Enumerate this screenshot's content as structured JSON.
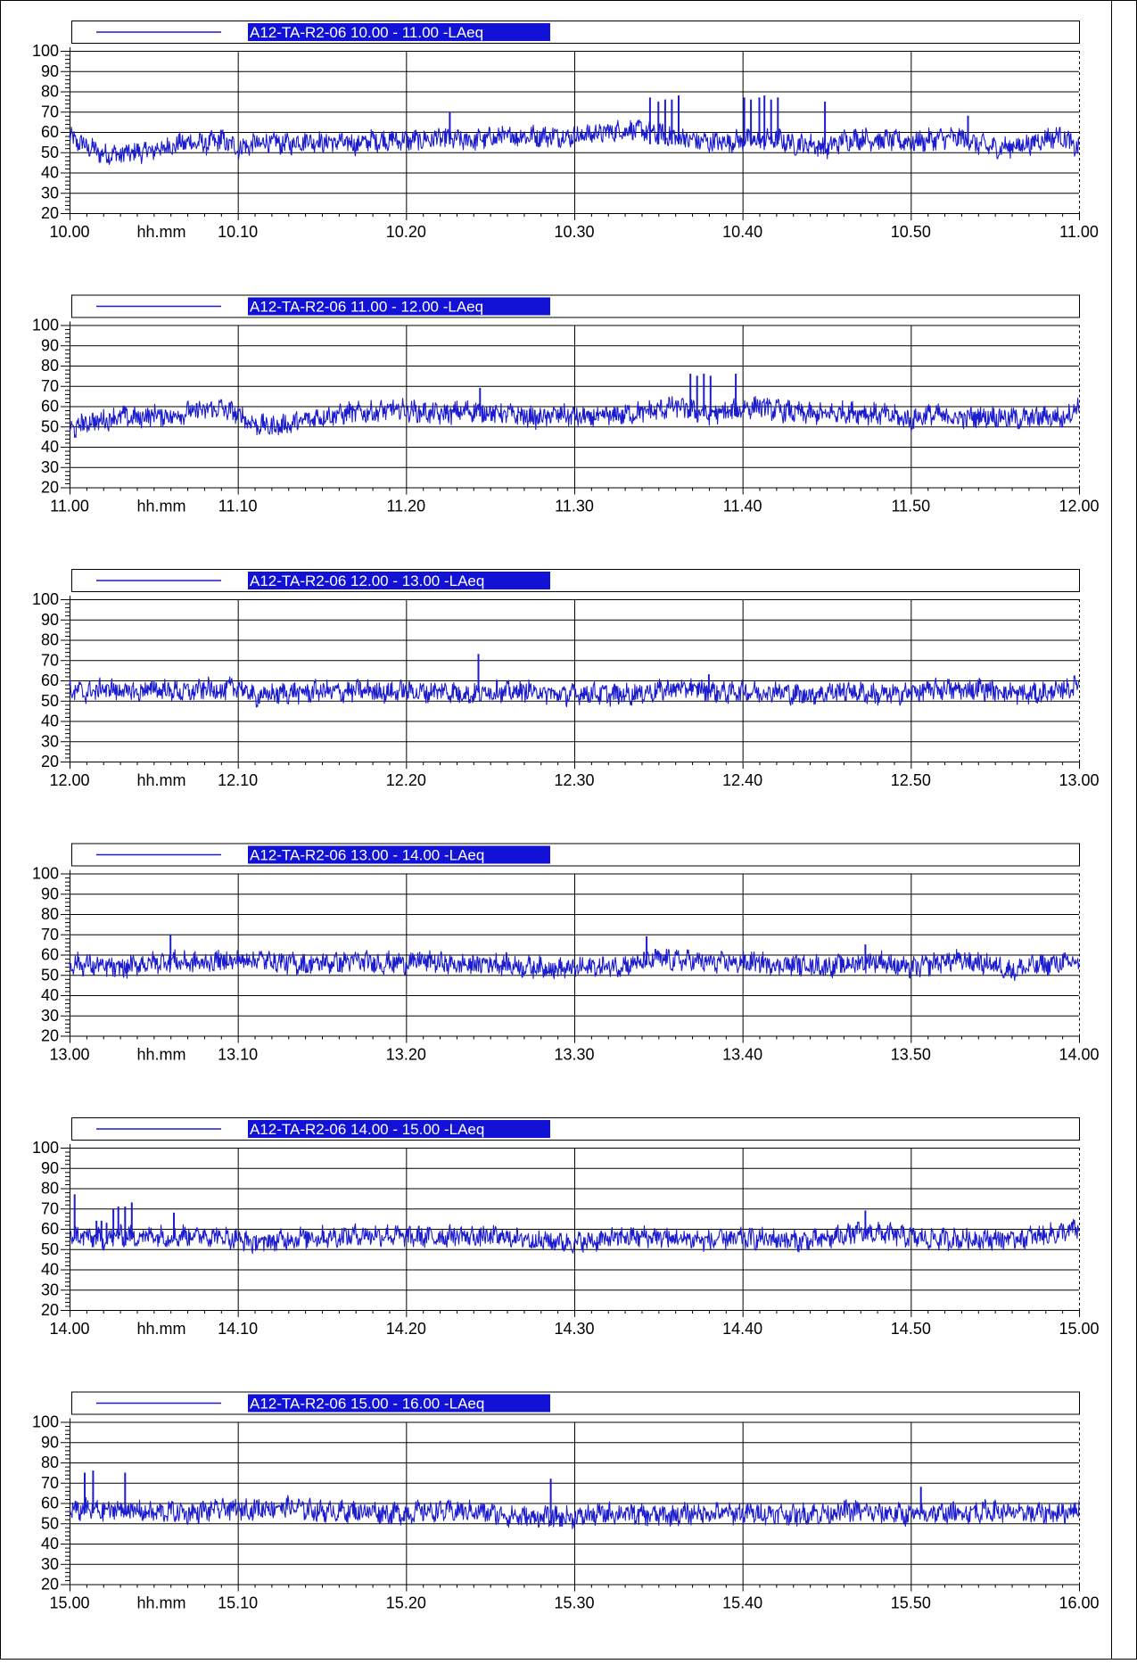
{
  "colors": {
    "series": "#1c1ccf",
    "legend_fill": "#1212d6",
    "legend_text": "#ffffff",
    "axis": "#000000",
    "background": "#ffffff"
  },
  "chart_data": [
    {
      "type": "line",
      "legend": "A12-TA-R2-06 10.00 - 11.00 -LAeq",
      "xlabel": "hh.mm",
      "xticks": [
        "10.00",
        "10.10",
        "10.20",
        "10.30",
        "10.40",
        "10.50",
        "11.00"
      ],
      "yticks": [
        "20",
        "30",
        "40",
        "50",
        "60",
        "70",
        "80",
        "90",
        "100"
      ],
      "ylim": [
        20,
        100
      ],
      "xlim_minutes": [
        0,
        60
      ],
      "grid": true,
      "baseline": 54,
      "series": [
        {
          "x": [
            0,
            1,
            2,
            3,
            4,
            5,
            6,
            7,
            8,
            9,
            10,
            11,
            12,
            13,
            14,
            15,
            16,
            17,
            18,
            19,
            20,
            21,
            22,
            23,
            24,
            25,
            26,
            27,
            28,
            29,
            30,
            31,
            32,
            33,
            34,
            35,
            36,
            37,
            38,
            39,
            40,
            41,
            42,
            43,
            44,
            45,
            46,
            47,
            48,
            49,
            50,
            51,
            52,
            53,
            54,
            55,
            56,
            57,
            58,
            59,
            60
          ],
          "y": [
            57,
            53,
            49,
            49,
            50,
            51,
            53,
            55,
            54,
            56,
            52,
            54,
            55,
            54,
            56,
            55,
            55,
            54,
            56,
            56,
            56,
            56,
            57,
            56,
            56,
            57,
            58,
            58,
            58,
            58,
            58,
            59,
            60,
            61,
            61,
            59,
            58,
            56,
            55,
            55,
            56,
            56,
            57,
            54,
            54,
            52,
            56,
            57,
            56,
            56,
            55,
            56,
            57,
            57,
            54,
            52,
            53,
            54,
            57,
            58,
            51
          ]
        }
      ],
      "spikes": [
        [
          9.0,
          61
        ],
        [
          22.6,
          70
        ],
        [
          34.5,
          77
        ],
        [
          35.0,
          75
        ],
        [
          35.4,
          76
        ],
        [
          35.8,
          76
        ],
        [
          36.2,
          78
        ],
        [
          40.1,
          77
        ],
        [
          40.5,
          76
        ],
        [
          41.0,
          77
        ],
        [
          41.3,
          78
        ],
        [
          41.7,
          76
        ],
        [
          42.1,
          77
        ],
        [
          44.9,
          75
        ],
        [
          53.4,
          68
        ]
      ]
    },
    {
      "type": "line",
      "legend": "A12-TA-R2-06 11.00 - 12.00 -LAeq",
      "xlabel": "hh.mm",
      "xticks": [
        "11.00",
        "11.10",
        "11.20",
        "11.30",
        "11.40",
        "11.50",
        "12.00"
      ],
      "yticks": [
        "20",
        "30",
        "40",
        "50",
        "60",
        "70",
        "80",
        "90",
        "100"
      ],
      "ylim": [
        20,
        100
      ],
      "xlim_minutes": [
        0,
        60
      ],
      "grid": true,
      "baseline": 55,
      "series": [
        {
          "x": [
            0,
            1,
            2,
            3,
            4,
            5,
            6,
            7,
            8,
            9,
            10,
            11,
            12,
            13,
            14,
            15,
            16,
            17,
            18,
            19,
            20,
            21,
            22,
            23,
            24,
            25,
            26,
            27,
            28,
            29,
            30,
            31,
            32,
            33,
            34,
            35,
            36,
            37,
            38,
            39,
            40,
            41,
            42,
            43,
            44,
            45,
            46,
            47,
            48,
            49,
            50,
            51,
            52,
            53,
            54,
            55,
            56,
            57,
            58,
            59,
            60
          ],
          "y": [
            48,
            52,
            53,
            55,
            54,
            56,
            55,
            57,
            58,
            59,
            56,
            51,
            50,
            51,
            53,
            55,
            56,
            57,
            57,
            58,
            58,
            57,
            56,
            57,
            58,
            57,
            56,
            55,
            54,
            56,
            55,
            54,
            55,
            56,
            57,
            58,
            60,
            58,
            56,
            57,
            59,
            60,
            58,
            57,
            56,
            56,
            57,
            57,
            56,
            55,
            53,
            56,
            55,
            54,
            55,
            55,
            54,
            54,
            55,
            54,
            60
          ]
        }
      ],
      "spikes": [
        [
          24.4,
          69
        ],
        [
          36.9,
          76
        ],
        [
          37.3,
          75
        ],
        [
          37.7,
          76
        ],
        [
          38.1,
          75
        ],
        [
          39.6,
          76
        ]
      ]
    },
    {
      "type": "line",
      "legend": "A12-TA-R2-06 12.00 - 13.00 -LAeq",
      "xlabel": "hh.mm",
      "xticks": [
        "12.00",
        "12.10",
        "12.20",
        "12.30",
        "12.40",
        "12.50",
        "13.00"
      ],
      "yticks": [
        "20",
        "30",
        "40",
        "50",
        "60",
        "70",
        "80",
        "90",
        "100"
      ],
      "ylim": [
        20,
        100
      ],
      "xlim_minutes": [
        0,
        60
      ],
      "grid": true,
      "baseline": 54,
      "series": [
        {
          "x": [
            0,
            1,
            2,
            3,
            4,
            5,
            6,
            7,
            8,
            9,
            10,
            11,
            12,
            13,
            14,
            15,
            16,
            17,
            18,
            19,
            20,
            21,
            22,
            23,
            24,
            25,
            26,
            27,
            28,
            29,
            30,
            31,
            32,
            33,
            34,
            35,
            36,
            37,
            38,
            39,
            40,
            41,
            42,
            43,
            44,
            45,
            46,
            47,
            48,
            49,
            50,
            51,
            52,
            53,
            54,
            55,
            56,
            57,
            58,
            59,
            60
          ],
          "y": [
            55,
            54,
            56,
            55,
            54,
            56,
            55,
            54,
            56,
            55,
            57,
            52,
            53,
            54,
            54,
            55,
            54,
            55,
            55,
            54,
            55,
            54,
            55,
            54,
            53,
            55,
            54,
            55,
            54,
            53,
            53,
            54,
            53,
            53,
            54,
            55,
            56,
            56,
            55,
            54,
            55,
            54,
            55,
            53,
            53,
            54,
            55,
            54,
            53,
            53,
            54,
            55,
            56,
            55,
            56,
            55,
            54,
            53,
            54,
            55,
            58
          ]
        }
      ],
      "spikes": [
        [
          24.3,
          73
        ],
        [
          25.4,
          60
        ],
        [
          38.0,
          63
        ]
      ]
    },
    {
      "type": "line",
      "legend": "A12-TA-R2-06 13.00 - 14.00 -LAeq",
      "xlabel": "hh.mm",
      "xticks": [
        "13.00",
        "13.10",
        "13.20",
        "13.30",
        "13.40",
        "13.50",
        "14.00"
      ],
      "yticks": [
        "20",
        "30",
        "40",
        "50",
        "60",
        "70",
        "80",
        "90",
        "100"
      ],
      "ylim": [
        20,
        100
      ],
      "xlim_minutes": [
        0,
        60
      ],
      "grid": true,
      "baseline": 55,
      "series": [
        {
          "x": [
            0,
            1,
            2,
            3,
            4,
            5,
            6,
            7,
            8,
            9,
            10,
            11,
            12,
            13,
            14,
            15,
            16,
            17,
            18,
            19,
            20,
            21,
            22,
            23,
            24,
            25,
            26,
            27,
            28,
            29,
            30,
            31,
            32,
            33,
            34,
            35,
            36,
            37,
            38,
            39,
            40,
            41,
            42,
            43,
            44,
            45,
            46,
            47,
            48,
            49,
            50,
            51,
            52,
            53,
            54,
            55,
            56,
            57,
            58,
            59,
            60
          ],
          "y": [
            56,
            55,
            54,
            53,
            55,
            56,
            57,
            56,
            56,
            57,
            57,
            58,
            57,
            56,
            55,
            56,
            56,
            57,
            56,
            56,
            56,
            57,
            56,
            55,
            55,
            56,
            55,
            54,
            54,
            53,
            53,
            54,
            54,
            55,
            56,
            58,
            57,
            57,
            56,
            56,
            56,
            56,
            55,
            55,
            55,
            54,
            55,
            56,
            57,
            55,
            53,
            55,
            57,
            57,
            56,
            55,
            52,
            54,
            55,
            56,
            56
          ]
        }
      ],
      "spikes": [
        [
          6.0,
          70
        ],
        [
          34.3,
          69
        ],
        [
          47.3,
          65
        ]
      ]
    },
    {
      "type": "line",
      "legend": "A12-TA-R2-06 14.00 - 15.00 -LAeq",
      "xlabel": "hh.mm",
      "xticks": [
        "14.00",
        "14.10",
        "14.20",
        "14.30",
        "14.40",
        "14.50",
        "15.00"
      ],
      "yticks": [
        "20",
        "30",
        "40",
        "50",
        "60",
        "70",
        "80",
        "90",
        "100"
      ],
      "ylim": [
        20,
        100
      ],
      "xlim_minutes": [
        0,
        60
      ],
      "grid": true,
      "baseline": 55,
      "series": [
        {
          "x": [
            0,
            1,
            2,
            3,
            4,
            5,
            6,
            7,
            8,
            9,
            10,
            11,
            12,
            13,
            14,
            15,
            16,
            17,
            18,
            19,
            20,
            21,
            22,
            23,
            24,
            25,
            26,
            27,
            28,
            29,
            30,
            31,
            32,
            33,
            34,
            35,
            36,
            37,
            38,
            39,
            40,
            41,
            42,
            43,
            44,
            45,
            46,
            47,
            48,
            49,
            50,
            51,
            52,
            53,
            54,
            55,
            56,
            57,
            58,
            59,
            60
          ],
          "y": [
            57,
            56,
            55,
            57,
            56,
            57,
            56,
            57,
            57,
            56,
            55,
            53,
            54,
            55,
            56,
            56,
            56,
            57,
            57,
            57,
            56,
            56,
            56,
            57,
            56,
            56,
            56,
            55,
            54,
            54,
            53,
            54,
            55,
            56,
            56,
            56,
            55,
            55,
            54,
            55,
            55,
            55,
            55,
            54,
            54,
            55,
            57,
            58,
            58,
            57,
            56,
            55,
            55,
            55,
            55,
            55,
            55,
            56,
            57,
            58,
            60
          ]
        }
      ],
      "spikes": [
        [
          0.3,
          77
        ],
        [
          1.6,
          64
        ],
        [
          1.9,
          64
        ],
        [
          2.2,
          63
        ],
        [
          2.6,
          70
        ],
        [
          2.9,
          71
        ],
        [
          3.3,
          71
        ],
        [
          3.7,
          73
        ],
        [
          6.2,
          68
        ],
        [
          47.3,
          69
        ]
      ]
    },
    {
      "type": "line",
      "legend": "A12-TA-R2-06 15.00 - 16.00 -LAeq",
      "xlabel": "hh.mm",
      "xticks": [
        "15.00",
        "15.10",
        "15.20",
        "15.30",
        "15.40",
        "15.50",
        "16.00"
      ],
      "yticks": [
        "20",
        "30",
        "40",
        "50",
        "60",
        "70",
        "80",
        "90",
        "100"
      ],
      "ylim": [
        20,
        100
      ],
      "xlim_minutes": [
        0,
        60
      ],
      "grid": true,
      "baseline": 55,
      "series": [
        {
          "x": [
            0,
            1,
            2,
            3,
            4,
            5,
            6,
            7,
            8,
            9,
            10,
            11,
            12,
            13,
            14,
            15,
            16,
            17,
            18,
            19,
            20,
            21,
            22,
            23,
            24,
            25,
            26,
            27,
            28,
            29,
            30,
            31,
            32,
            33,
            34,
            35,
            36,
            37,
            38,
            39,
            40,
            41,
            42,
            43,
            44,
            45,
            46,
            47,
            48,
            49,
            50,
            51,
            52,
            53,
            54,
            55,
            56,
            57,
            58,
            59,
            60
          ],
          "y": [
            56,
            57,
            56,
            57,
            56,
            55,
            56,
            55,
            56,
            57,
            57,
            57,
            58,
            58,
            57,
            56,
            56,
            56,
            56,
            55,
            55,
            56,
            56,
            56,
            56,
            55,
            54,
            53,
            53,
            53,
            53,
            54,
            55,
            55,
            54,
            54,
            54,
            55,
            55,
            55,
            55,
            55,
            55,
            54,
            55,
            55,
            56,
            56,
            55,
            55,
            54,
            55,
            55,
            55,
            56,
            56,
            55,
            55,
            55,
            55,
            58
          ]
        }
      ],
      "spikes": [
        [
          0.9,
          75
        ],
        [
          1.4,
          76
        ],
        [
          3.3,
          75
        ],
        [
          28.6,
          72
        ],
        [
          50.6,
          68
        ]
      ]
    }
  ]
}
